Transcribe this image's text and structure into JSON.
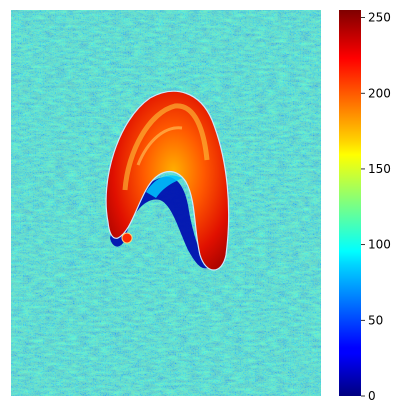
{
  "colorbar": {
    "colormap": "jet",
    "range": [
      0,
      255
    ],
    "ticks": [
      {
        "value": 0,
        "label": "0"
      },
      {
        "value": 50,
        "label": "50"
      },
      {
        "value": 100,
        "label": "100"
      },
      {
        "value": 150,
        "label": "150"
      },
      {
        "value": 200,
        "label": "200"
      },
      {
        "value": 250,
        "label": "250"
      }
    ]
  },
  "image": {
    "subject": "crescent-shaped object",
    "background_level": "low-to-mid (blue/cyan noise)",
    "object_level": "high (red/orange)"
  }
}
